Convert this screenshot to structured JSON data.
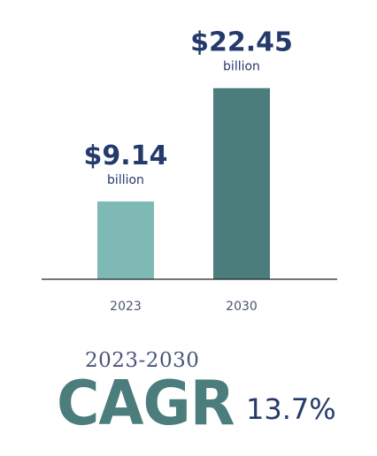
{
  "chart_data": {
    "type": "bar",
    "categories": [
      "2023",
      "2030"
    ],
    "values": [
      9.14,
      22.45
    ],
    "data_labels": [
      "$9.14",
      "$22.45"
    ],
    "unit_label": "billion",
    "ylim": [
      0,
      24.5
    ],
    "grid": false,
    "colors": [
      "#7fb9b6",
      "#4a7d7b"
    ]
  },
  "cagr": {
    "period": "2023-2030",
    "label": "CAGR",
    "value": "13.7%"
  },
  "colors": {
    "text_navy": "#243a6b",
    "teal_dark": "#4a7d7b",
    "teal_light": "#7fb9b6"
  }
}
